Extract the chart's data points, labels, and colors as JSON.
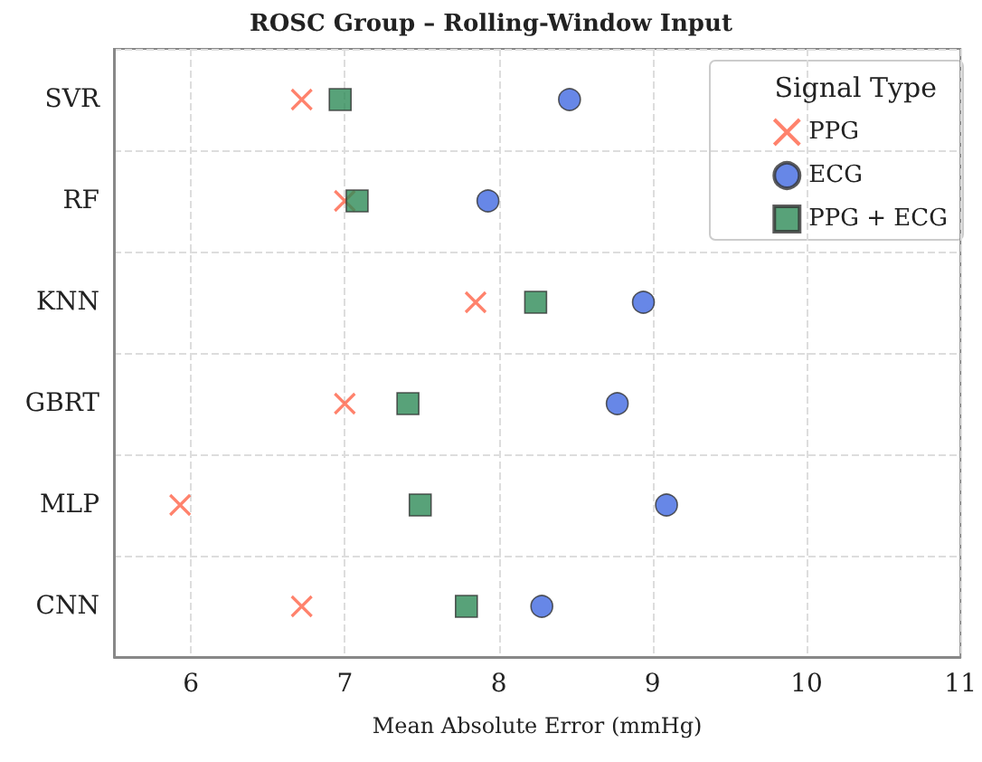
{
  "chart_data": {
    "type": "scatter",
    "orientation": "horizontal",
    "title": "ROSC Group – Rolling-Window Input",
    "xlabel": "Mean Absolute Error (mmHg)",
    "legend_title": "Signal Type",
    "categories": [
      "SVR",
      "RF",
      "KNN",
      "GBRT",
      "MLP",
      "CNN"
    ],
    "series": [
      {
        "name": "PPG",
        "color": "#ff6347",
        "marker": "cross",
        "values": [
          6.72,
          7.0,
          7.85,
          7.0,
          5.93,
          6.72
        ]
      },
      {
        "name": "ECG",
        "color": "#4169e1",
        "marker": "circle",
        "values": [
          8.46,
          7.93,
          8.94,
          8.77,
          9.09,
          8.28
        ]
      },
      {
        "name": "PPG + ECG",
        "color": "#2e8b57",
        "marker": "square",
        "values": [
          6.97,
          7.08,
          8.24,
          7.41,
          7.49,
          7.79
        ]
      }
    ],
    "xlim": [
      5.5,
      11
    ],
    "xticks": [
      6,
      7,
      8,
      9,
      10,
      11
    ],
    "grid": true,
    "legend": "top right"
  }
}
